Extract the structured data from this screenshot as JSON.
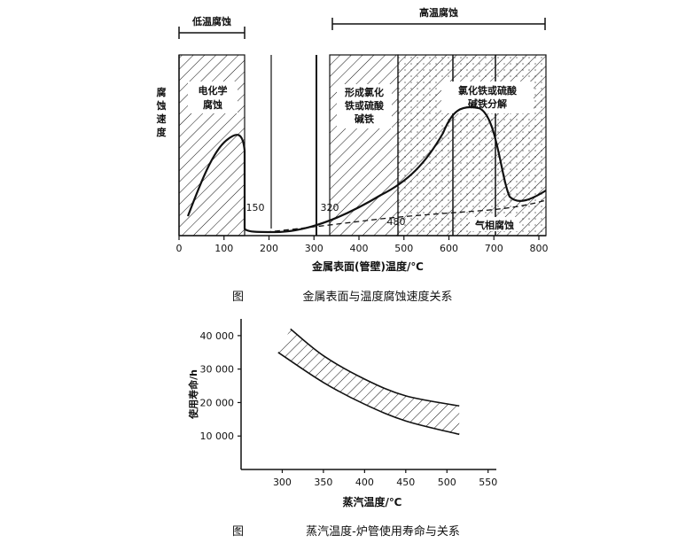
{
  "figure1": {
    "caption_prefix": "图",
    "caption": "金属表面与温度腐蚀速度关系",
    "top_labels": {
      "low": "低温腐蚀",
      "high": "高温腐蚀"
    },
    "ylabel": "腐蚀速度",
    "xlabel": "金属表面(管壁)温度/℃",
    "zone_labels": {
      "electro_1": "电化学",
      "electro_2": "腐蚀",
      "chloride_1": "形成氯化",
      "chloride_2": "铁或硫酸",
      "chloride_3": "碱铁",
      "decomp_1": "氯化铁或硫酸",
      "decomp_2": "碱铁分解",
      "gas": "气相腐蚀"
    },
    "annotations": {
      "a150": "150",
      "a320": "320",
      "a480": "480"
    }
  },
  "figure2": {
    "caption_prefix": "图",
    "caption": "蒸汽温度-炉管使用寿命与关系",
    "ylabel": "使用寿命/h",
    "xlabel": "蒸汽温度/℃"
  },
  "chart_data": [
    {
      "type": "line",
      "xlabel": "金属表面(管壁)温度/℃",
      "ylabel": "腐蚀速度",
      "xlim": [
        0,
        800
      ],
      "x_ticks": [
        "0",
        "100",
        "200",
        "300",
        "400",
        "500",
        "600",
        "700",
        "800"
      ],
      "zones": [
        {
          "name": "电化学腐蚀",
          "x_range": [
            0,
            150
          ]
        },
        {
          "name": "形成氯化铁或硫酸碱铁",
          "x_range": [
            350,
            490
          ]
        },
        {
          "name": "氯化铁或硫酸碱铁分解",
          "x_range": [
            490,
            810
          ]
        }
      ],
      "reference_lines_x": [
        150,
        200,
        320,
        490,
        610,
        700
      ],
      "series": [
        {
          "values": [
            [
              20,
              0.1
            ],
            [
              60,
              0.45
            ],
            [
              100,
              0.65
            ],
            [
              120,
              0.7
            ],
            [
              140,
              0.5
            ],
            [
              150,
              0.1
            ],
            [
              200,
              0.02
            ],
            [
              300,
              0.06
            ],
            [
              400,
              0.2
            ],
            [
              500,
              0.38
            ],
            [
              550,
              0.52
            ],
            [
              600,
              0.7
            ],
            [
              640,
              0.74
            ],
            [
              680,
              0.6
            ],
            [
              700,
              0.3
            ],
            [
              740,
              0.2
            ],
            [
              800,
              0.22
            ]
          ]
        },
        {
          "values": [
            [
              300,
              0.02
            ],
            [
              400,
              0.07
            ],
            [
              480,
              0.1
            ],
            [
              600,
              0.12
            ],
            [
              700,
              0.15
            ],
            [
              800,
              0.2
            ]
          ]
        }
      ]
    },
    {
      "type": "area",
      "xlabel": "蒸汽温度/℃",
      "ylabel": "使用寿命/h",
      "xlim": [
        250,
        560
      ],
      "ylim": [
        0,
        45000
      ],
      "x_ticks": [
        "300",
        "350",
        "400",
        "450",
        "500",
        "550"
      ],
      "y_ticks": [
        "10 000",
        "20 000",
        "30 000",
        "40 000"
      ],
      "series": [
        {
          "values": [
            [
              310,
              42000
            ],
            [
              350,
              34000
            ],
            [
              400,
              27000
            ],
            [
              450,
              22000
            ],
            [
              515,
              19000
            ]
          ]
        },
        {
          "values": [
            [
              295,
              35000
            ],
            [
              350,
              26000
            ],
            [
              400,
              19500
            ],
            [
              450,
              14500
            ],
            [
              515,
              10500
            ]
          ]
        }
      ]
    }
  ]
}
